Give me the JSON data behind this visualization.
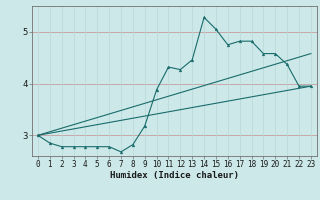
{
  "xlabel": "Humidex (Indice chaleur)",
  "ylabel": "",
  "bg_color": "#cce8e8",
  "grid_color_major": "#b8d8d8",
  "grid_color_minor": "#cce8e8",
  "line_color": "#1a6b6b",
  "xlim": [
    -0.5,
    23.5
  ],
  "ylim": [
    2.6,
    5.5
  ],
  "yticks": [
    3,
    4,
    5
  ],
  "xticks": [
    0,
    1,
    2,
    3,
    4,
    5,
    6,
    7,
    8,
    9,
    10,
    11,
    12,
    13,
    14,
    15,
    16,
    17,
    18,
    19,
    20,
    21,
    22,
    23
  ],
  "line1_x": [
    0,
    1,
    2,
    3,
    4,
    5,
    6,
    7,
    8,
    9,
    10,
    11,
    12,
    13,
    14,
    15,
    16,
    17,
    18,
    19,
    20,
    21,
    22,
    23
  ],
  "line1_y": [
    3.0,
    2.85,
    2.78,
    2.78,
    2.78,
    2.78,
    2.78,
    2.68,
    2.82,
    3.18,
    3.88,
    4.32,
    4.27,
    4.46,
    5.28,
    5.05,
    4.75,
    4.82,
    4.82,
    4.58,
    4.58,
    4.37,
    3.95,
    3.95
  ],
  "line2_x": [
    0,
    23
  ],
  "line2_y": [
    3.0,
    3.95
  ],
  "line3_x": [
    0,
    23
  ],
  "line3_y": [
    3.0,
    4.58
  ],
  "xlabel_fontsize": 6.5,
  "tick_fontsize": 5.5,
  "ytick_fontsize": 6.5
}
